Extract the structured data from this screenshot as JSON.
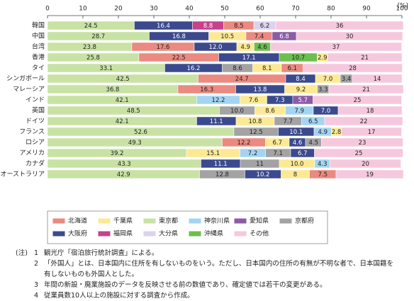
{
  "chart_data": {
    "type": "stacked-barh",
    "unit": "(%)",
    "xlim": [
      0,
      100
    ],
    "xticks": [
      0,
      10,
      20,
      30,
      40,
      50,
      60,
      70,
      80,
      90,
      100
    ],
    "grid": false,
    "legend": [
      {
        "name": "北海道",
        "color": "#ea8a80"
      },
      {
        "name": "千葉県",
        "color": "#fde994"
      },
      {
        "name": "東京都",
        "color": "#c8e2a4"
      },
      {
        "name": "神奈川県",
        "color": "#a3d5f2"
      },
      {
        "name": "愛知県",
        "color": "#8c5ba6"
      },
      {
        "name": "京都府",
        "color": "#a3a3a3"
      },
      {
        "name": "大阪府",
        "color": "#3b4a8e"
      },
      {
        "name": "福岡県",
        "color": "#c6428c"
      },
      {
        "name": "大分県",
        "color": "#dbd3ee"
      },
      {
        "name": "沖縄県",
        "color": "#6cbf4d"
      },
      {
        "name": "その他",
        "color": "#f6c8dd"
      }
    ],
    "rows": [
      {
        "name": "韓国",
        "segments": [
          {
            "name": "東京都",
            "value": 24.5
          },
          {
            "name": "大阪府",
            "value": 16.4
          },
          {
            "name": "福岡県",
            "value": 8.8
          },
          {
            "name": "北海道",
            "value": 8.5
          },
          {
            "name": "大分県",
            "value": 6.2
          },
          {
            "name": "その他",
            "value": 36
          }
        ]
      },
      {
        "name": "中国",
        "segments": [
          {
            "name": "東京都",
            "value": 28.7
          },
          {
            "name": "大阪府",
            "value": 16.8
          },
          {
            "name": "千葉県",
            "value": 10.5
          },
          {
            "name": "北海道",
            "value": 7.4
          },
          {
            "name": "愛知県",
            "value": 6.8
          },
          {
            "name": "その他",
            "value": 30
          }
        ]
      },
      {
        "name": "台湾",
        "segments": [
          {
            "name": "東京都",
            "value": 23.8
          },
          {
            "name": "北海道",
            "value": 17.6
          },
          {
            "name": "大阪府",
            "value": 12,
            "label": "12.0"
          },
          {
            "name": "千葉県",
            "value": 4.9
          },
          {
            "name": "沖縄県",
            "value": 4.6
          },
          {
            "name": "その他",
            "value": 37
          }
        ]
      },
      {
        "name": "香港",
        "segments": [
          {
            "name": "東京都",
            "value": 25.8
          },
          {
            "name": "北海道",
            "value": 22.5
          },
          {
            "name": "大阪府",
            "value": 17.1
          },
          {
            "name": "沖縄県",
            "value": 10.7
          },
          {
            "name": "千葉県",
            "value": 2.9
          },
          {
            "name": "その他",
            "value": 21
          }
        ]
      },
      {
        "name": "タイ",
        "segments": [
          {
            "name": "東京都",
            "value": 33.1
          },
          {
            "name": "大阪府",
            "value": 16.2
          },
          {
            "name": "京都府",
            "value": 8.6
          },
          {
            "name": "千葉県",
            "value": 8.1
          },
          {
            "name": "北海道",
            "value": 6.1
          },
          {
            "name": "その他",
            "value": 28
          }
        ]
      },
      {
        "name": "シンガポール",
        "segments": [
          {
            "name": "東京都",
            "value": 42.5
          },
          {
            "name": "北海道",
            "value": 24.7
          },
          {
            "name": "大阪府",
            "value": 8.4
          },
          {
            "name": "千葉県",
            "value": 7,
            "label": "7.0"
          },
          {
            "name": "京都府",
            "value": 3.4
          },
          {
            "name": "その他",
            "value": 14
          }
        ]
      },
      {
        "name": "マレーシア",
        "segments": [
          {
            "name": "東京都",
            "value": 36.8
          },
          {
            "name": "北海道",
            "value": 16.3
          },
          {
            "name": "大阪府",
            "value": 13.8
          },
          {
            "name": "千葉県",
            "value": 9.2
          },
          {
            "name": "京都府",
            "value": 3.3
          },
          {
            "name": "その他",
            "value": 21
          }
        ]
      },
      {
        "name": "インド",
        "segments": [
          {
            "name": "東京都",
            "value": 42.1
          },
          {
            "name": "神奈川県",
            "value": 12.2
          },
          {
            "name": "千葉県",
            "value": 7.6
          },
          {
            "name": "大阪府",
            "value": 7.3
          },
          {
            "name": "愛知県",
            "value": 5.7
          },
          {
            "name": "その他",
            "value": 25
          }
        ]
      },
      {
        "name": "英国",
        "segments": [
          {
            "name": "東京都",
            "value": 48.5
          },
          {
            "name": "京都府",
            "value": 10,
            "label": "10.0"
          },
          {
            "name": "千葉県",
            "value": 8.6
          },
          {
            "name": "神奈川県",
            "value": 7.9
          },
          {
            "name": "大阪府",
            "value": 7,
            "label": "7.0"
          },
          {
            "name": "その他",
            "value": 18
          }
        ]
      },
      {
        "name": "ドイツ",
        "segments": [
          {
            "name": "東京都",
            "value": 42.1
          },
          {
            "name": "大阪府",
            "value": 11.1
          },
          {
            "name": "千葉県",
            "value": 10.8
          },
          {
            "name": "京都府",
            "value": 7.7
          },
          {
            "name": "神奈川県",
            "value": 6.5
          },
          {
            "name": "その他",
            "value": 22
          }
        ]
      },
      {
        "name": "フランス",
        "segments": [
          {
            "name": "東京都",
            "value": 52.6
          },
          {
            "name": "京都府",
            "value": 12.5
          },
          {
            "name": "大阪府",
            "value": 10.1
          },
          {
            "name": "神奈川県",
            "value": 4.9
          },
          {
            "name": "千葉県",
            "value": 2.8
          },
          {
            "name": "その他",
            "value": 17
          }
        ]
      },
      {
        "name": "ロシア",
        "segments": [
          {
            "name": "東京都",
            "value": 49.3
          },
          {
            "name": "北海道",
            "value": 12.2
          },
          {
            "name": "千葉県",
            "value": 6.7
          },
          {
            "name": "大阪府",
            "value": 4.6
          },
          {
            "name": "京都府",
            "value": 4.5
          },
          {
            "name": "その他",
            "value": 23
          }
        ]
      },
      {
        "name": "アメリカ",
        "segments": [
          {
            "name": "東京都",
            "value": 39.2
          },
          {
            "name": "千葉県",
            "value": 15.1
          },
          {
            "name": "神奈川県",
            "value": 7.2
          },
          {
            "name": "京都府",
            "value": 7.1
          },
          {
            "name": "大阪府",
            "value": 6.7
          },
          {
            "name": "その他",
            "value": 25
          }
        ]
      },
      {
        "name": "カナダ",
        "segments": [
          {
            "name": "東京都",
            "value": 43.3
          },
          {
            "name": "大阪府",
            "value": 11.1
          },
          {
            "name": "京都府",
            "value": 11
          },
          {
            "name": "千葉県",
            "value": 10,
            "label": "10.0"
          },
          {
            "name": "神奈川県",
            "value": 4.3
          },
          {
            "name": "その他",
            "value": 20
          }
        ]
      },
      {
        "name": "オーストラリア",
        "segments": [
          {
            "name": "東京都",
            "value": 42.9
          },
          {
            "name": "京都府",
            "value": 12.8
          },
          {
            "name": "大阪府",
            "value": 10.2
          },
          {
            "name": "千葉県",
            "value": 8
          },
          {
            "name": "北海道",
            "value": 7.5
          },
          {
            "name": "その他",
            "value": 19
          }
        ]
      }
    ]
  },
  "notes": {
    "heading": "(注)",
    "items": [
      {
        "number": "1",
        "text": "観光庁「宿泊旅行統計調査」による。"
      },
      {
        "number": "2",
        "text": "「外国人」とは、日本国内に住所を有しないものをいう。ただし、日本国内の住所の有無が不明な者で、日本国籍を有しないものも外国人とした。"
      },
      {
        "number": "3",
        "text": "年間の新設・廃業施設のデータを反映させる前の数値であり、確定値では若干の変更がある。"
      },
      {
        "number": "4",
        "text": "従業員数10人以上の施設に対する調査から作成。"
      }
    ]
  }
}
